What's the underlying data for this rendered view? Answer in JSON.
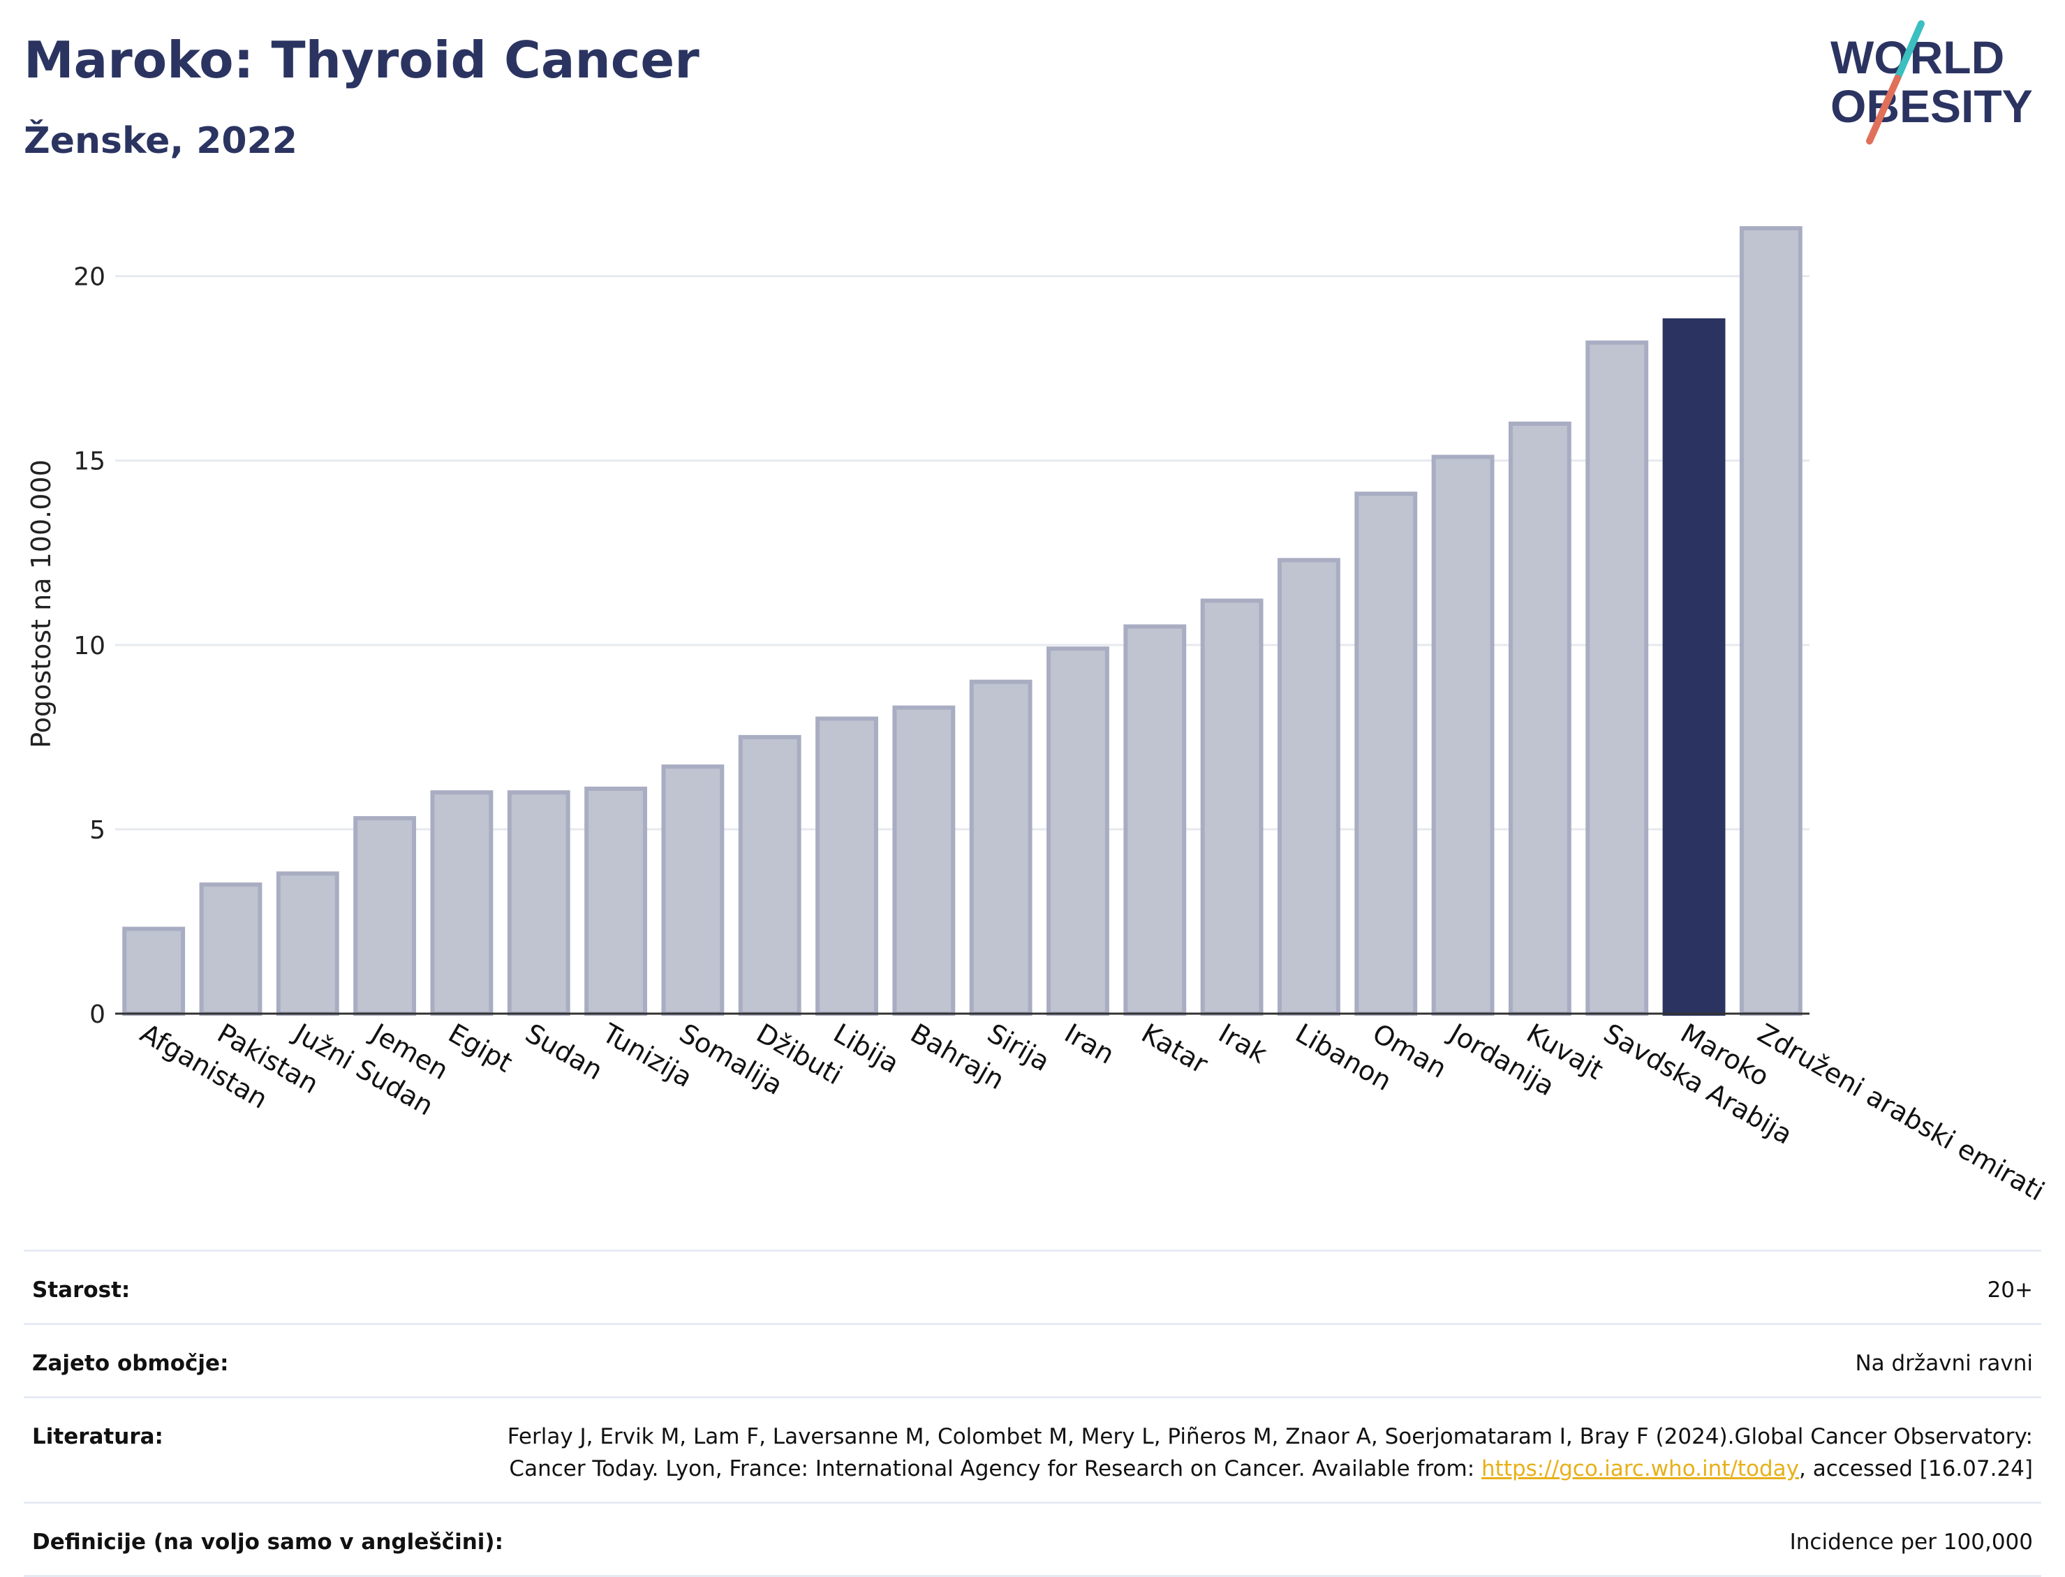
{
  "header": {
    "title": "Maroko: Thyroid Cancer",
    "subtitle": "Ženske, 2022"
  },
  "logo": {
    "line1": "WORLD",
    "line2": "OBESITY",
    "colors": {
      "text": "#2b3461",
      "slash_top": "#3bbfc0",
      "slash_bottom": "#e0705a"
    }
  },
  "chart_data": {
    "type": "bar",
    "ylabel": "Pogostost na 100.000",
    "xlabel": "",
    "ylim": [
      0,
      22
    ],
    "yticks": [
      0,
      5,
      10,
      15,
      20
    ],
    "grid": true,
    "categories": [
      "Afganistan",
      "Pakistan",
      "Južni Sudan",
      "Jemen",
      "Egipt",
      "Sudan",
      "Tunizija",
      "Somalija",
      "Džibuti",
      "Libija",
      "Bahrajn",
      "Sirija",
      "Iran",
      "Katar",
      "Irak",
      "Libanon",
      "Oman",
      "Jordanija",
      "Kuvajt",
      "Savdska Arabija",
      "Maroko",
      "Združeni arabski emirati"
    ],
    "values": [
      2.3,
      3.5,
      3.8,
      5.3,
      6.0,
      6.0,
      6.1,
      6.7,
      7.5,
      8.0,
      8.3,
      9.0,
      9.9,
      10.5,
      11.2,
      12.3,
      14.1,
      15.1,
      16.0,
      18.2,
      18.8,
      21.3
    ],
    "highlight": "Maroko",
    "colors": {
      "bar": "#c0c3d0",
      "bar_border": "#a9adc2",
      "highlight": "#2b3461"
    }
  },
  "meta": {
    "rows": [
      {
        "label": "Starost:",
        "value": "20+"
      },
      {
        "label": "Zajeto območje:",
        "value": "Na državni ravni"
      },
      {
        "label": "Literatura:",
        "value_pre": "Ferlay J, Ervik M, Lam F, Laversanne M, Colombet M, Mery L, Piñeros M, Znaor A, Soerjomataram I, Bray F (2024).Global Cancer Observatory: Cancer Today. Lyon, France: International Agency for Research on Cancer. Available from: ",
        "link": "https://gco.iarc.who.int/today",
        "value_post": ", accessed [16.07.24]"
      },
      {
        "label": "Definicije (na voljo samo v angleščini):",
        "value": "Incidence per 100,000"
      }
    ]
  }
}
